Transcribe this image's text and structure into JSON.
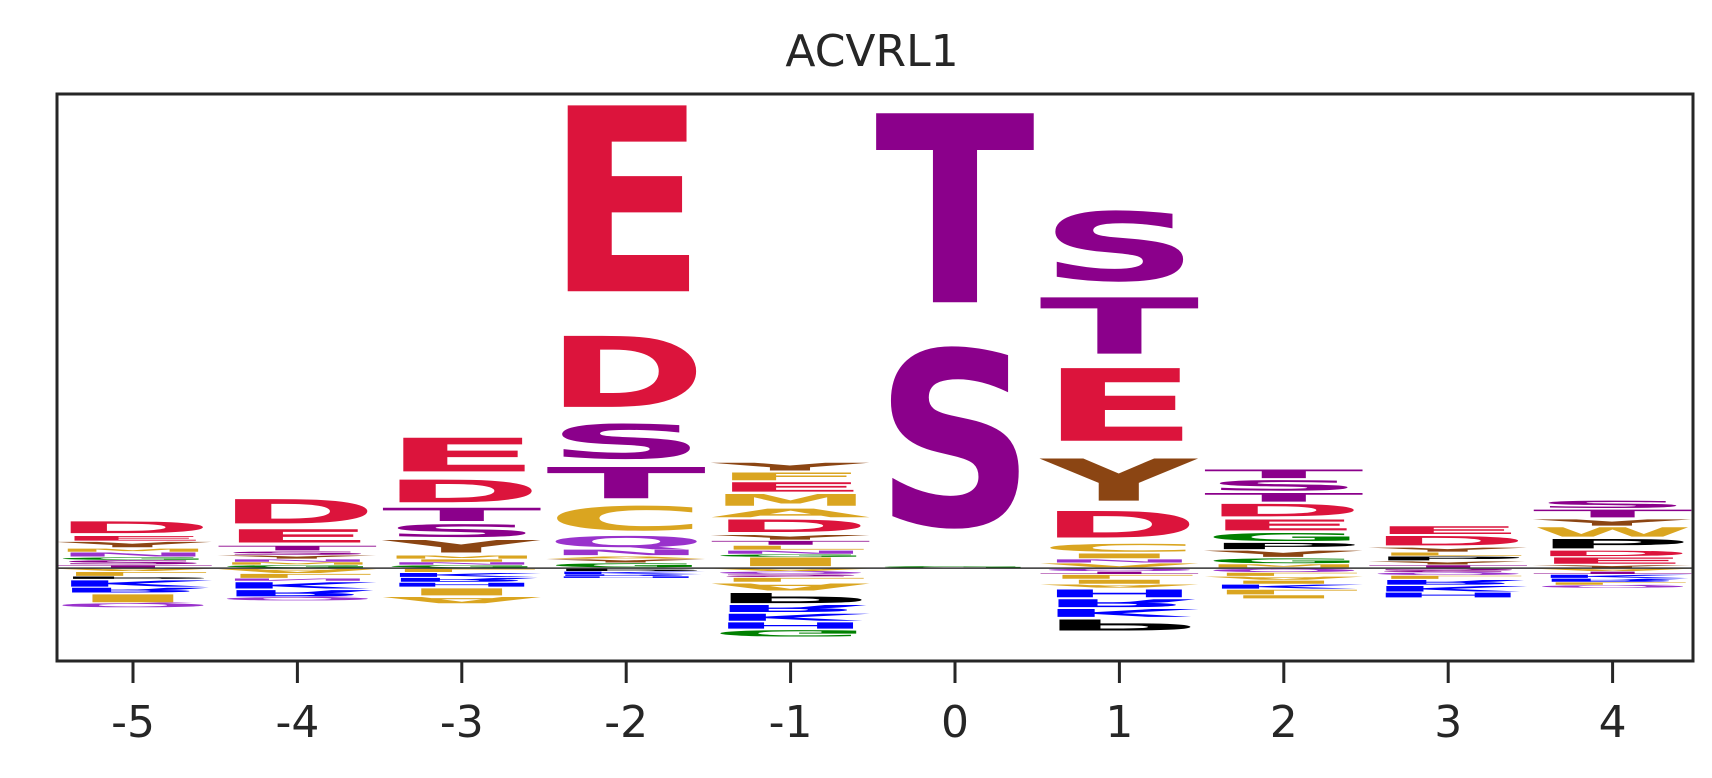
{
  "chart_data": {
    "type": "sequence-logo",
    "title": "ACVRL1",
    "xlabel": "",
    "ylabel": "",
    "x_ticks": [
      "-5",
      "-4",
      "-3",
      "-2",
      "-1",
      "0",
      "1",
      "2",
      "3",
      "4"
    ],
    "ylim": [
      -0.95,
      4.85
    ],
    "baseline": 0,
    "grid": false,
    "colors": {
      "acidic": "#DC143C",
      "ST": "#8B008B",
      "Y": "#8B4513",
      "basic": "#0000FF",
      "P": "#000000",
      "G": "#008000",
      "hydrophobic": "#DAA520",
      "NQ": "#9932CC"
    },
    "positions": [
      {
        "pos": "-5",
        "positive": [
          [
            "T",
            0.03
          ],
          [
            "S",
            0.05
          ],
          [
            "G",
            0.03
          ],
          [
            "N",
            0.05
          ],
          [
            "M",
            0.04
          ],
          [
            "Y",
            0.07
          ],
          [
            "E",
            0.06
          ],
          [
            "D",
            0.15
          ]
        ],
        "negative": [
          [
            "A",
            0.03
          ],
          [
            "L",
            0.05
          ],
          [
            "P",
            0.03
          ],
          [
            "K",
            0.08
          ],
          [
            "R",
            0.06
          ],
          [
            "I",
            0.1
          ],
          [
            "Q",
            0.05
          ]
        ]
      },
      {
        "pos": "-4",
        "positive": [
          [
            "G",
            0.03
          ],
          [
            "M",
            0.03
          ],
          [
            "N",
            0.03
          ],
          [
            "Y",
            0.04
          ],
          [
            "S",
            0.04
          ],
          [
            "T",
            0.06
          ],
          [
            "E",
            0.17
          ],
          [
            "D",
            0.31
          ]
        ],
        "negative": [
          [
            "A",
            0.05
          ],
          [
            "L",
            0.05
          ],
          [
            "N",
            0.03
          ],
          [
            "K",
            0.08
          ],
          [
            "R",
            0.08
          ],
          [
            "Q",
            0.04
          ]
        ]
      },
      {
        "pos": "-3",
        "positive": [
          [
            "G",
            0.03
          ],
          [
            "N",
            0.03
          ],
          [
            "I",
            0.03
          ],
          [
            "M",
            0.04
          ],
          [
            "Y",
            0.16
          ],
          [
            "S",
            0.16
          ],
          [
            "T",
            0.17
          ],
          [
            "D",
            0.29
          ],
          [
            "E",
            0.43
          ]
        ],
        "negative": [
          [
            "L",
            0.04
          ],
          [
            "K",
            0.05
          ],
          [
            "R",
            0.05
          ],
          [
            "H",
            0.05
          ],
          [
            "I",
            0.09
          ],
          [
            "A",
            0.08
          ]
        ]
      },
      {
        "pos": "-2",
        "positive": [
          [
            "G",
            0.05
          ],
          [
            "Y",
            0.04
          ],
          [
            "A",
            0.03
          ],
          [
            "N",
            0.07
          ],
          [
            "Q",
            0.14
          ],
          [
            "C",
            0.31
          ],
          [
            "T",
            0.4
          ],
          [
            "S",
            0.44
          ],
          [
            "D",
            0.91
          ],
          [
            "E",
            2.38
          ]
        ],
        "negative": [
          [
            "P",
            0.03
          ],
          [
            "K",
            0.03
          ],
          [
            "R",
            0.02
          ],
          [
            "H",
            0.02
          ]
        ]
      },
      {
        "pos": "-1",
        "positive": [
          [
            "I",
            0.11
          ],
          [
            "G",
            0.03
          ],
          [
            "N",
            0.04
          ],
          [
            "L",
            0.05
          ],
          [
            "T",
            0.05
          ],
          [
            "Y",
            0.06
          ],
          [
            "D",
            0.16
          ],
          [
            "A",
            0.11
          ],
          [
            "M",
            0.15
          ],
          [
            "E",
            0.12
          ],
          [
            "F",
            0.1
          ],
          [
            "Y",
            0.1
          ]
        ],
        "negative": [
          [
            "A",
            0.03
          ],
          [
            "Q",
            0.03
          ],
          [
            "S",
            0.03
          ],
          [
            "L",
            0.05
          ],
          [
            "A",
            0.09
          ],
          [
            "P",
            0.13
          ],
          [
            "R",
            0.09
          ],
          [
            "K",
            0.09
          ],
          [
            "H",
            0.08
          ],
          [
            "G",
            0.08
          ]
        ]
      },
      {
        "pos": "0",
        "positive": [
          [
            "G",
            0.02
          ],
          [
            "S",
            2.25
          ],
          [
            "T",
            2.42
          ]
        ],
        "negative": []
      },
      {
        "pos": "1",
        "positive": [
          [
            "V",
            0.05
          ],
          [
            "N",
            0.04
          ],
          [
            "I",
            0.06
          ],
          [
            "C",
            0.1
          ],
          [
            "D",
            0.34
          ],
          [
            "Y",
            0.54
          ],
          [
            "E",
            0.93
          ],
          [
            "T",
            0.72
          ],
          [
            "S",
            0.88
          ]
        ],
        "negative": [
          [
            "Q",
            0.03
          ],
          [
            "T",
            0.03
          ],
          [
            "L",
            0.05
          ],
          [
            "I",
            0.05
          ],
          [
            "A",
            0.04
          ],
          [
            "H",
            0.1
          ],
          [
            "R",
            0.1
          ],
          [
            "K",
            0.1
          ],
          [
            "P",
            0.14
          ]
        ]
      },
      {
        "pos": "2",
        "positive": [
          [
            "M",
            0.04
          ],
          [
            "G",
            0.06
          ],
          [
            "Y",
            0.08
          ],
          [
            "P",
            0.08
          ],
          [
            "G",
            0.1
          ],
          [
            "E",
            0.14
          ],
          [
            "D",
            0.16
          ],
          [
            "T",
            0.11
          ],
          [
            "S",
            0.13
          ],
          [
            "T",
            0.11
          ]
        ],
        "negative": [
          [
            "Q",
            0.04
          ],
          [
            "L",
            0.04
          ],
          [
            "A",
            0.04
          ],
          [
            "I",
            0.04
          ],
          [
            "K",
            0.05
          ],
          [
            "L",
            0.06
          ],
          [
            "I",
            0.04
          ]
        ]
      },
      {
        "pos": "3",
        "positive": [
          [
            "T",
            0.03
          ],
          [
            "Y",
            0.04
          ],
          [
            "P",
            0.05
          ],
          [
            "L",
            0.04
          ],
          [
            "Y",
            0.05
          ],
          [
            "D",
            0.12
          ],
          [
            "E",
            0.1
          ]
        ],
        "negative": [
          [
            "S",
            0.04
          ],
          [
            "Q",
            0.03
          ],
          [
            "L",
            0.04
          ],
          [
            "R",
            0.06
          ],
          [
            "K",
            0.07
          ],
          [
            "H",
            0.06
          ]
        ]
      },
      {
        "pos": "4",
        "positive": [
          [
            "Y",
            0.03
          ],
          [
            "E",
            0.08
          ],
          [
            "D",
            0.07
          ],
          [
            "P",
            0.12
          ],
          [
            "W",
            0.12
          ],
          [
            "Y",
            0.08
          ],
          [
            "T",
            0.1
          ],
          [
            "S",
            0.09
          ]
        ],
        "negative": [
          [
            "A",
            0.03
          ],
          [
            "T",
            0.03
          ],
          [
            "K",
            0.04
          ],
          [
            "R",
            0.04
          ],
          [
            "L",
            0.03
          ],
          [
            "Q",
            0.03
          ]
        ]
      }
    ]
  }
}
